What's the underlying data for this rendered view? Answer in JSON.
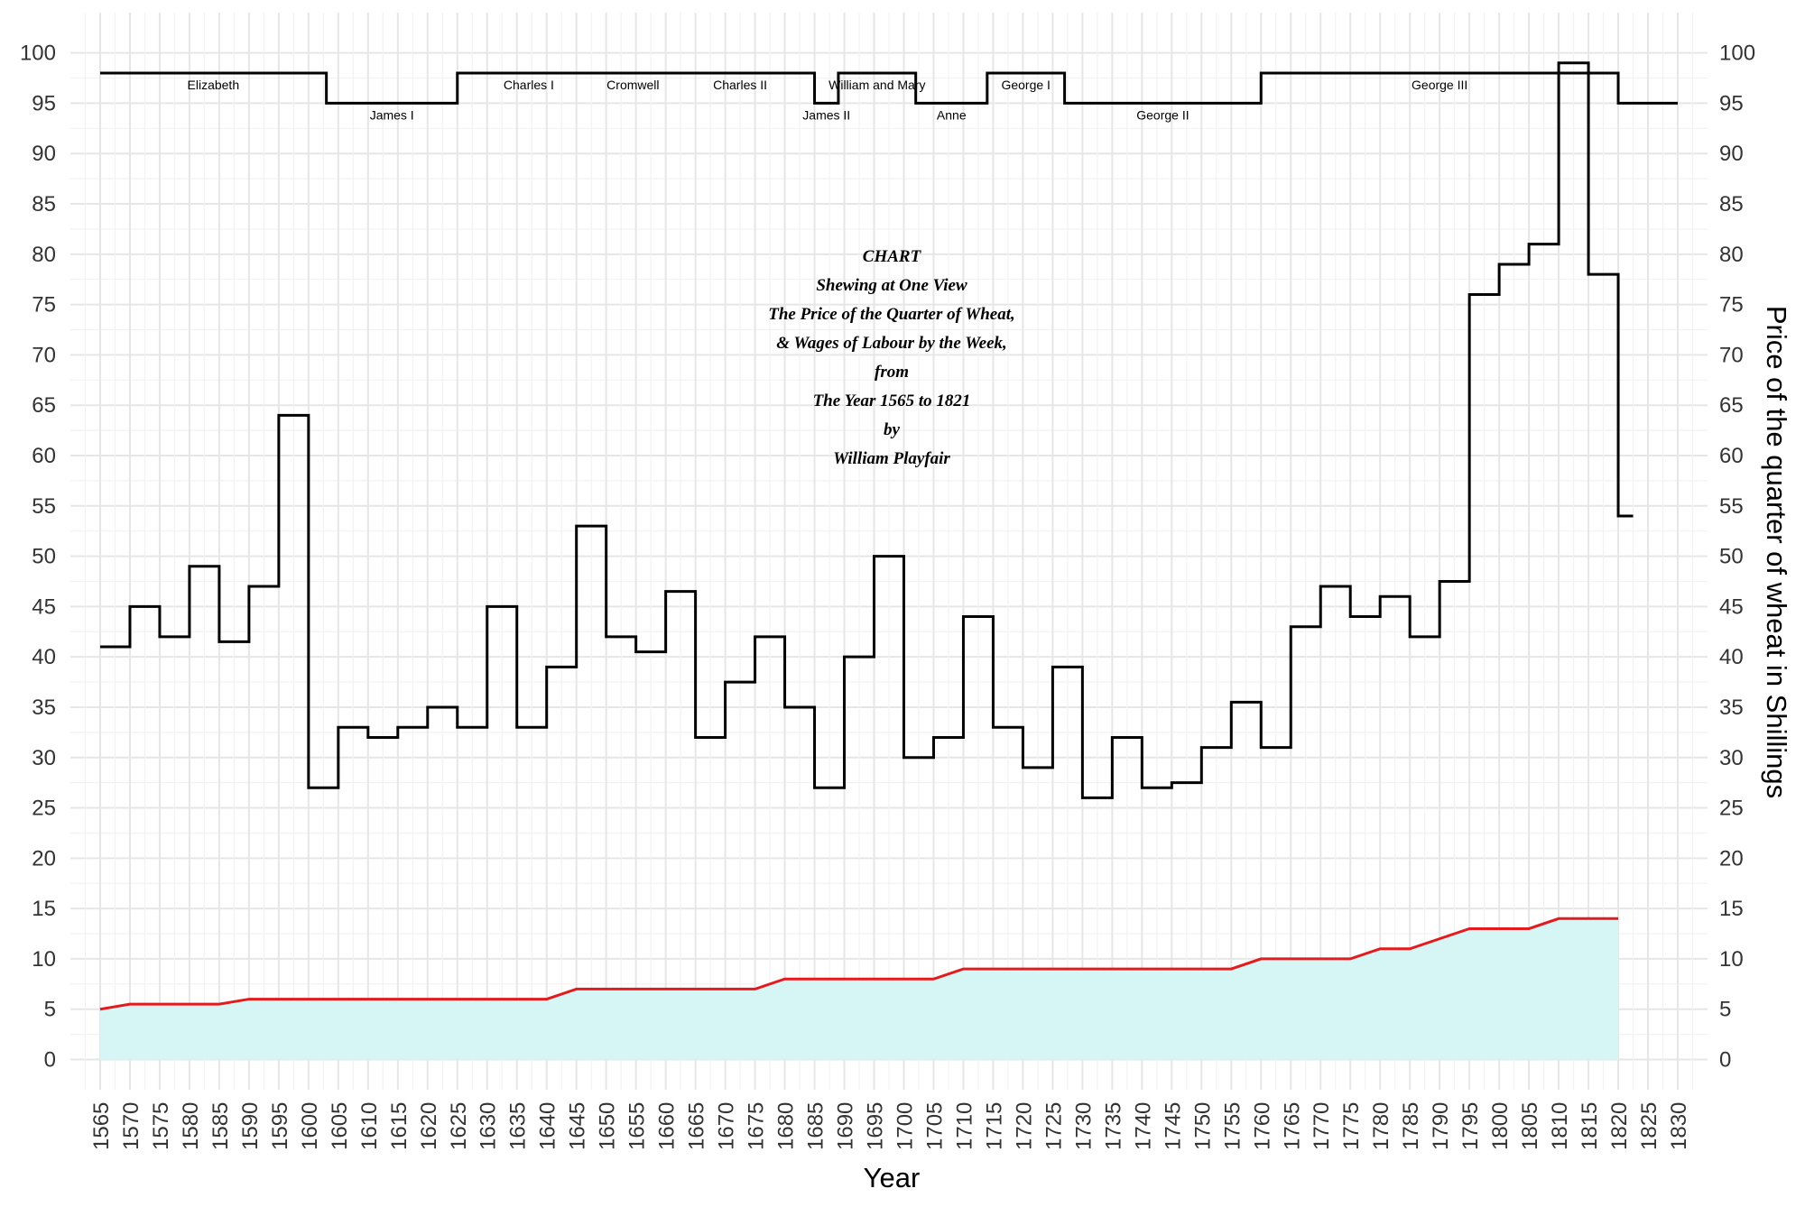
{
  "chart_data": {
    "type": "line",
    "title_lines": [
      "CHART",
      "Shewing at One View",
      "The Price of the Quarter of Wheat,",
      "& Wages of Labour by the Week,",
      "from",
      "The Year 1565 to 1821",
      "by",
      "William Playfair"
    ],
    "xlabel": "Year",
    "ylabel_right": "Price of the quarter of wheat in Shillings",
    "xlim": [
      1560,
      1835
    ],
    "ylim": [
      -3,
      104
    ],
    "x_ticks": [
      1565,
      1570,
      1575,
      1580,
      1585,
      1590,
      1595,
      1600,
      1605,
      1610,
      1615,
      1620,
      1625,
      1630,
      1635,
      1640,
      1645,
      1650,
      1655,
      1660,
      1665,
      1670,
      1675,
      1680,
      1685,
      1690,
      1695,
      1700,
      1705,
      1710,
      1715,
      1720,
      1725,
      1730,
      1735,
      1740,
      1745,
      1750,
      1755,
      1760,
      1765,
      1770,
      1775,
      1780,
      1785,
      1790,
      1795,
      1800,
      1805,
      1810,
      1815,
      1820,
      1825,
      1830
    ],
    "y_ticks": [
      0,
      5,
      10,
      15,
      20,
      25,
      30,
      35,
      40,
      45,
      50,
      55,
      60,
      65,
      70,
      75,
      80,
      85,
      90,
      95,
      100
    ],
    "grid": true,
    "series": [
      {
        "name": "wheat",
        "style": "step",
        "color": "#000000",
        "x": [
          1565,
          1570,
          1575,
          1580,
          1585,
          1590,
          1595,
          1600,
          1605,
          1610,
          1615,
          1620,
          1625,
          1630,
          1635,
          1640,
          1645,
          1650,
          1655,
          1660,
          1665,
          1670,
          1675,
          1680,
          1685,
          1690,
          1695,
          1700,
          1705,
          1710,
          1715,
          1720,
          1725,
          1730,
          1735,
          1740,
          1745,
          1750,
          1755,
          1760,
          1765,
          1770,
          1775,
          1780,
          1785,
          1790,
          1795,
          1800,
          1805,
          1810,
          1815,
          1820
        ],
        "values": [
          41,
          45,
          42,
          49,
          41.5,
          47,
          64,
          27,
          33,
          32,
          33,
          35,
          33,
          45,
          33,
          39,
          53,
          42,
          40.5,
          46.5,
          32,
          37.5,
          42,
          35,
          27,
          40,
          50,
          30,
          32,
          44,
          33,
          29,
          39,
          26,
          32,
          27,
          27.5,
          31,
          35.5,
          31,
          43,
          47,
          44,
          46,
          42,
          47.5,
          76,
          79,
          81,
          99,
          78,
          54
        ]
      },
      {
        "name": "wages",
        "style": "line",
        "color": "#e41a1c",
        "fill": "#d6f5f5",
        "x": [
          1565,
          1570,
          1575,
          1580,
          1585,
          1590,
          1595,
          1600,
          1605,
          1610,
          1615,
          1620,
          1625,
          1630,
          1635,
          1640,
          1645,
          1650,
          1655,
          1660,
          1665,
          1670,
          1675,
          1680,
          1685,
          1690,
          1695,
          1700,
          1705,
          1710,
          1715,
          1720,
          1725,
          1730,
          1735,
          1740,
          1745,
          1750,
          1755,
          1760,
          1765,
          1770,
          1775,
          1780,
          1785,
          1790,
          1795,
          1800,
          1805,
          1810,
          1815,
          1820
        ],
        "values": [
          5,
          5.5,
          5.5,
          5.5,
          5.5,
          6,
          6,
          6,
          6,
          6,
          6,
          6,
          6,
          6,
          6,
          6,
          7,
          7,
          7,
          7,
          7,
          7,
          7,
          8,
          8,
          8,
          8,
          8,
          8,
          9,
          9,
          9,
          9,
          9,
          9,
          9,
          9,
          9,
          9,
          10,
          10,
          10,
          10,
          11,
          11,
          12,
          13,
          13,
          13,
          14,
          14,
          14
        ]
      }
    ],
    "monarchs": [
      {
        "name": "Elizabeth",
        "start": 1565,
        "end": 1603,
        "level": "high"
      },
      {
        "name": "James I",
        "start": 1603,
        "end": 1625,
        "level": "low"
      },
      {
        "name": "Charles I",
        "start": 1625,
        "end": 1649,
        "level": "high"
      },
      {
        "name": "Cromwell",
        "start": 1649,
        "end": 1660,
        "level": "high"
      },
      {
        "name": "Charles II",
        "start": 1660,
        "end": 1685,
        "level": "high"
      },
      {
        "name": "James II",
        "start": 1685,
        "end": 1689,
        "level": "low"
      },
      {
        "name": "William and Mary",
        "start": 1689,
        "end": 1702,
        "level": "high"
      },
      {
        "name": "Anne",
        "start": 1702,
        "end": 1714,
        "level": "low"
      },
      {
        "name": "George I",
        "start": 1714,
        "end": 1727,
        "level": "high"
      },
      {
        "name": "George II",
        "start": 1727,
        "end": 1760,
        "level": "low"
      },
      {
        "name": "George III",
        "start": 1760,
        "end": 1820,
        "level": "high"
      },
      {
        "name": "",
        "start": 1820,
        "end": 1830,
        "level": "low"
      }
    ],
    "monarch_levels": {
      "high": 98,
      "low": 95
    }
  }
}
